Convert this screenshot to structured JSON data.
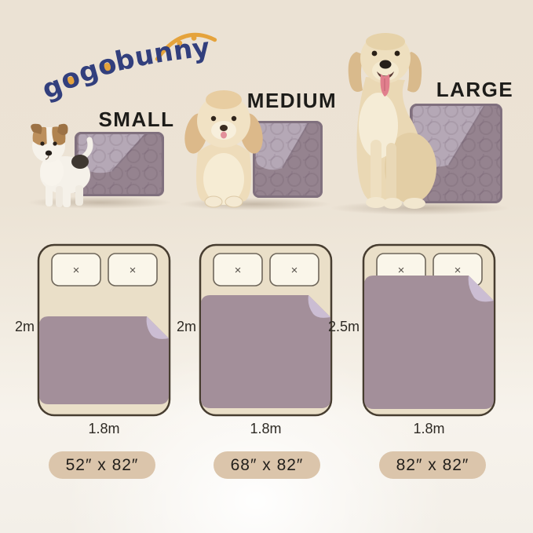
{
  "brand": {
    "name": "gogobunny",
    "navy": "#323f7d",
    "orange": "#e5a33c"
  },
  "sizes": [
    {
      "id": "small",
      "label": "SMALL",
      "bed_height": "2m",
      "bed_width": "1.8m",
      "pad_size": "52″ x 82″"
    },
    {
      "id": "medium",
      "label": "MEDIUM",
      "bed_height": "2m",
      "bed_width": "1.8m",
      "pad_size": "68″ x 82″"
    },
    {
      "id": "large",
      "label": "LARGE",
      "bed_height": "2.5m",
      "bed_width": "1.8m",
      "pad_size": "82″ x 82″"
    }
  ],
  "pillow_mark": "×",
  "colors": {
    "pad": "#a38f9a",
    "pad_fold": "#cbbdd3",
    "pad_photo_dark": "#95838f",
    "pad_photo_light": "#b5a8b6",
    "bed_fill": "#eadfc8",
    "bed_outline": "#473d30",
    "pillow_fill": "#faf6ea",
    "pill_bg": "#dbc5ab",
    "background_top": "#ebe2d4"
  }
}
